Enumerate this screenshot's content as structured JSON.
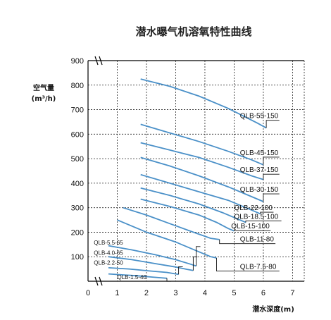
{
  "chart_data": {
    "type": "line",
    "title": "潜水曝气机溶氧特性曲线",
    "xlabel": "潜水深度(m)",
    "ylabel_line1": "空气量",
    "ylabel_line2": "(m³/h)",
    "xlim": [
      0,
      7.4
    ],
    "ylim": [
      0,
      900
    ],
    "x_ticks": [
      "0",
      "1",
      "2",
      "3",
      "4",
      "5",
      "6",
      "7"
    ],
    "y_ticks": [
      "100",
      "200",
      "300",
      "400",
      "500",
      "600",
      "700",
      "800",
      "900"
    ],
    "grid": true,
    "series": [
      {
        "name": "QLB-55-150",
        "x": [
          1.8,
          2.8,
          3.8,
          4.8,
          5.8,
          6.1
        ],
        "y": [
          825,
          795,
          755,
          705,
          645,
          625
        ],
        "label_pos": [
          5.2,
          665
        ]
      },
      {
        "name": "QLB-45-150",
        "x": [
          1.8,
          2.8,
          3.8,
          4.8,
          5.6,
          6.0
        ],
        "y": [
          640,
          605,
          570,
          530,
          495,
          475
        ],
        "label_pos": [
          5.2,
          515
        ]
      },
      {
        "name": "QLB-37-150",
        "x": [
          1.8,
          2.8,
          3.8,
          4.8,
          5.6,
          6.0
        ],
        "y": [
          565,
          535,
          505,
          465,
          430,
          415
        ],
        "label_pos": [
          5.2,
          445
        ]
      },
      {
        "name": "QLB-30-150",
        "x": [
          1.8,
          2.8,
          3.8,
          4.8,
          5.6,
          6.0
        ],
        "y": [
          505,
          470,
          430,
          385,
          345,
          325
        ],
        "label_pos": [
          5.2,
          365
        ]
      },
      {
        "name": "QLB-22-100",
        "x": [
          1.8,
          2.8,
          3.8,
          4.8,
          5.6,
          5.9
        ],
        "y": [
          435,
          400,
          365,
          330,
          290,
          275
        ],
        "label_pos": [
          5.0,
          290
        ]
      },
      {
        "name": "QLB-18.5-100",
        "x": [
          1.8,
          2.8,
          3.8,
          4.6,
          5.2,
          5.4
        ],
        "y": [
          380,
          350,
          315,
          280,
          250,
          240
        ],
        "label_pos": [
          5.0,
          255
        ]
      },
      {
        "name": "QLB-15-100",
        "x": [
          1.8,
          2.8,
          3.8,
          4.4,
          4.8,
          5.0
        ],
        "y": [
          335,
          305,
          270,
          240,
          215,
          205
        ],
        "label_pos": [
          4.9,
          215
        ]
      },
      {
        "name": "QLB-11-80",
        "x": [
          1.2,
          2.0,
          2.8,
          3.6,
          4.2,
          4.5
        ],
        "y": [
          300,
          270,
          235,
          200,
          175,
          170
        ],
        "label_pos": [
          5.2,
          162
        ]
      },
      {
        "name": "QLB-7.5-80",
        "x": [
          1.0,
          2.0,
          3.0,
          3.8,
          4.2,
          4.4
        ],
        "y": [
          250,
          200,
          160,
          120,
          100,
          95
        ],
        "label_pos": [
          5.2,
          50
        ]
      },
      {
        "name": "QLB-5.5-65",
        "x": [
          0.7,
          1.5,
          2.3,
          3.0,
          3.5,
          3.7
        ],
        "y": [
          145,
          128,
          108,
          88,
          70,
          62
        ],
        "label_pos": [
          0.2,
          150
        ]
      },
      {
        "name": "QLB-4.0-65",
        "x": [
          0.7,
          1.5,
          2.3,
          3.0,
          3.4,
          3.6
        ],
        "y": [
          100,
          88,
          72,
          58,
          48,
          44
        ],
        "label_pos": [
          0.2,
          108
        ]
      },
      {
        "name": "QLB-2.2-50",
        "x": [
          0.7,
          1.4,
          2.1,
          2.7,
          3.0,
          3.1
        ],
        "y": [
          55,
          50,
          42,
          36,
          30,
          28
        ],
        "label_pos": [
          0.2,
          68
        ]
      },
      {
        "name": "QLB-1.5-40",
        "x": [
          0.7,
          1.2,
          1.7,
          2.2,
          2.5,
          2.7
        ],
        "y": [
          30,
          26,
          22,
          17,
          14,
          12
        ],
        "label_pos": [
          1.0,
          8
        ]
      }
    ]
  }
}
